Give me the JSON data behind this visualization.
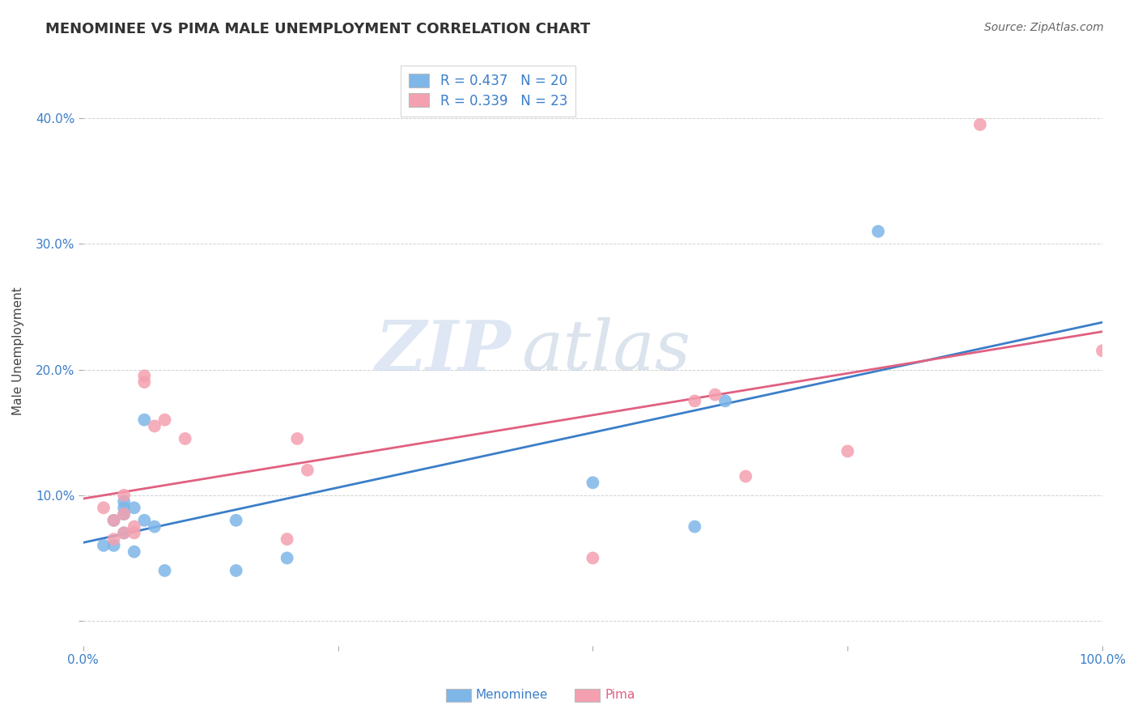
{
  "title": "MENOMINEE VS PIMA MALE UNEMPLOYMENT CORRELATION CHART",
  "source": "Source: ZipAtlas.com",
  "ylabel": "Male Unemployment",
  "xlim": [
    0.0,
    1.0
  ],
  "ylim": [
    -0.02,
    0.45
  ],
  "yticks": [
    0.0,
    0.1,
    0.2,
    0.3,
    0.4
  ],
  "menominee_color": "#7EB6E8",
  "pima_color": "#F4A0B0",
  "menominee_line_color": "#3B7EC8",
  "pima_line_color": "#E06080",
  "r_menominee": 0.437,
  "n_menominee": 20,
  "r_pima": 0.339,
  "n_pima": 23,
  "menominee_x": [
    0.02,
    0.03,
    0.03,
    0.04,
    0.04,
    0.04,
    0.04,
    0.05,
    0.05,
    0.06,
    0.06,
    0.07,
    0.08,
    0.15,
    0.15,
    0.2,
    0.5,
    0.6,
    0.63,
    0.78
  ],
  "menominee_y": [
    0.06,
    0.08,
    0.06,
    0.085,
    0.09,
    0.095,
    0.07,
    0.055,
    0.09,
    0.16,
    0.08,
    0.075,
    0.04,
    0.04,
    0.08,
    0.05,
    0.11,
    0.075,
    0.175,
    0.31
  ],
  "pima_x": [
    0.02,
    0.03,
    0.03,
    0.04,
    0.04,
    0.04,
    0.05,
    0.05,
    0.06,
    0.06,
    0.07,
    0.08,
    0.1,
    0.2,
    0.21,
    0.22,
    0.5,
    0.6,
    0.62,
    0.65,
    0.75,
    0.88,
    1.0
  ],
  "pima_y": [
    0.09,
    0.065,
    0.08,
    0.085,
    0.07,
    0.1,
    0.07,
    0.075,
    0.195,
    0.19,
    0.155,
    0.16,
    0.145,
    0.065,
    0.145,
    0.12,
    0.05,
    0.175,
    0.18,
    0.115,
    0.135,
    0.395,
    0.215
  ],
  "background_color": "#FFFFFF",
  "grid_color": "#CCCCCC",
  "watermark_zip": "ZIP",
  "watermark_atlas": "atlas",
  "legend_color": "#3B7EC8"
}
